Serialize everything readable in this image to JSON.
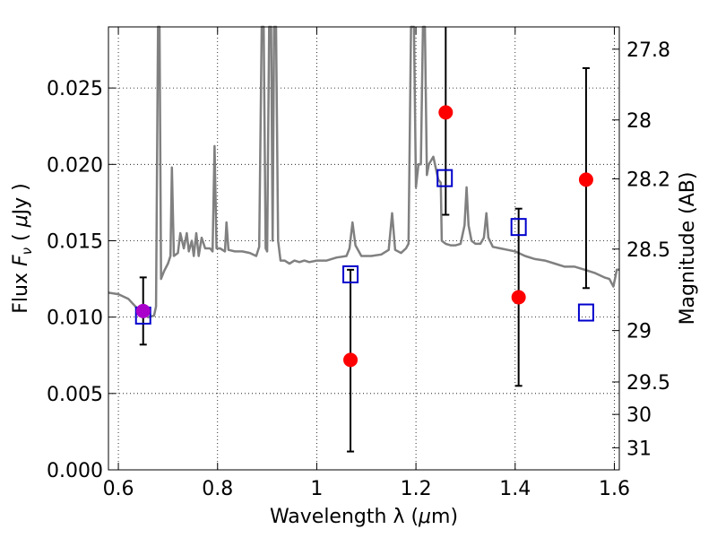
{
  "chart_data": {
    "type": "scatter",
    "title": "",
    "xlabel_text": "Wavelength  λ (",
    "xlabel_mu": "μ",
    "xlabel_unit": "m)",
    "ylabel_text": "Flux  ",
    "ylabel_symbol": "F",
    "ylabel_sub": "ν",
    "ylabel_rest": "  ( ",
    "ylabel_mu": "μ",
    "ylabel_unit": "Jy )",
    "y2label": "Magnitude (AB)",
    "xlim": [
      0.58,
      1.61
    ],
    "ylim": [
      0.0,
      0.029
    ],
    "grid": true,
    "grid_style": "dotted",
    "xticks": [
      {
        "value": 0.6,
        "label": "0.6"
      },
      {
        "value": 0.8,
        "label": "0.8"
      },
      {
        "value": 1.0,
        "label": "1"
      },
      {
        "value": 1.2,
        "label": "1.2"
      },
      {
        "value": 1.4,
        "label": "1.4"
      },
      {
        "value": 1.6,
        "label": "1.6"
      }
    ],
    "yticks": [
      {
        "value": 0.0,
        "label": "0.000"
      },
      {
        "value": 0.005,
        "label": "0.005"
      },
      {
        "value": 0.01,
        "label": "0.010"
      },
      {
        "value": 0.015,
        "label": "0.015"
      },
      {
        "value": 0.02,
        "label": "0.020"
      },
      {
        "value": 0.025,
        "label": "0.025"
      }
    ],
    "y2ticks": [
      {
        "mag": 27.8,
        "label": "27.8"
      },
      {
        "mag": 28.0,
        "label": "28"
      },
      {
        "mag": 28.2,
        "label": "28.2"
      },
      {
        "mag": 28.5,
        "label": "28.5"
      },
      {
        "mag": 29.0,
        "label": "29"
      },
      {
        "mag": 29.5,
        "label": "29.5"
      },
      {
        "mag": 30.0,
        "label": "30"
      },
      {
        "mag": 31.0,
        "label": "31"
      }
    ],
    "series": [
      {
        "kind": "spectrum",
        "color": "#808080",
        "points": [
          [
            0.58,
            0.0116
          ],
          [
            0.6,
            0.0115
          ],
          [
            0.62,
            0.0112
          ],
          [
            0.64,
            0.0105
          ],
          [
            0.66,
            0.01
          ],
          [
            0.672,
            0.0101
          ],
          [
            0.676,
            0.0107
          ],
          [
            0.68,
            0.029
          ],
          [
            0.683,
            0.029
          ],
          [
            0.686,
            0.0125
          ],
          [
            0.692,
            0.013
          ],
          [
            0.7,
            0.0135
          ],
          [
            0.705,
            0.014
          ],
          [
            0.708,
            0.0198
          ],
          [
            0.712,
            0.014
          ],
          [
            0.72,
            0.0142
          ],
          [
            0.725,
            0.0155
          ],
          [
            0.732,
            0.0145
          ],
          [
            0.738,
            0.0155
          ],
          [
            0.742,
            0.0143
          ],
          [
            0.748,
            0.015
          ],
          [
            0.752,
            0.014
          ],
          [
            0.757,
            0.0155
          ],
          [
            0.762,
            0.014
          ],
          [
            0.768,
            0.0152
          ],
          [
            0.775,
            0.0145
          ],
          [
            0.785,
            0.0145
          ],
          [
            0.79,
            0.0143
          ],
          [
            0.794,
            0.0212
          ],
          [
            0.798,
            0.0145
          ],
          [
            0.805,
            0.0145
          ],
          [
            0.815,
            0.0143
          ],
          [
            0.818,
            0.0162
          ],
          [
            0.822,
            0.0144
          ],
          [
            0.835,
            0.0143
          ],
          [
            0.85,
            0.0143
          ],
          [
            0.865,
            0.0142
          ],
          [
            0.878,
            0.014
          ],
          [
            0.884,
            0.0146
          ],
          [
            0.889,
            0.029
          ],
          [
            0.893,
            0.029
          ],
          [
            0.897,
            0.0145
          ],
          [
            0.9,
            0.0143
          ],
          [
            0.904,
            0.029
          ],
          [
            0.908,
            0.029
          ],
          [
            0.911,
            0.015
          ],
          [
            0.914,
            0.029
          ],
          [
            0.918,
            0.029
          ],
          [
            0.922,
            0.015
          ],
          [
            0.927,
            0.0137
          ],
          [
            0.935,
            0.0137
          ],
          [
            0.945,
            0.0135
          ],
          [
            0.955,
            0.0137
          ],
          [
            0.965,
            0.0136
          ],
          [
            0.975,
            0.0137
          ],
          [
            0.985,
            0.0136
          ],
          [
            1.0,
            0.0137
          ],
          [
            1.02,
            0.0137
          ],
          [
            1.04,
            0.0139
          ],
          [
            1.06,
            0.014
          ],
          [
            1.066,
            0.0145
          ],
          [
            1.072,
            0.0162
          ],
          [
            1.078,
            0.0147
          ],
          [
            1.09,
            0.014
          ],
          [
            1.11,
            0.014
          ],
          [
            1.13,
            0.0141
          ],
          [
            1.145,
            0.0144
          ],
          [
            1.152,
            0.0168
          ],
          [
            1.158,
            0.0144
          ],
          [
            1.17,
            0.0142
          ],
          [
            1.18,
            0.0145
          ],
          [
            1.185,
            0.0148
          ],
          [
            1.19,
            0.029
          ],
          [
            1.196,
            0.029
          ],
          [
            1.2,
            0.0185
          ],
          [
            1.205,
            0.02
          ],
          [
            1.21,
            0.02
          ],
          [
            1.214,
            0.029
          ],
          [
            1.218,
            0.029
          ],
          [
            1.222,
            0.0193
          ],
          [
            1.226,
            0.02
          ],
          [
            1.235,
            0.0205
          ],
          [
            1.245,
            0.019
          ],
          [
            1.25,
            0.0188
          ],
          [
            1.252,
            0.015
          ],
          [
            1.26,
            0.0148
          ],
          [
            1.27,
            0.0147
          ],
          [
            1.28,
            0.0147
          ],
          [
            1.29,
            0.0148
          ],
          [
            1.298,
            0.016
          ],
          [
            1.302,
            0.0185
          ],
          [
            1.306,
            0.016
          ],
          [
            1.312,
            0.015
          ],
          [
            1.32,
            0.0148
          ],
          [
            1.33,
            0.0148
          ],
          [
            1.337,
            0.0152
          ],
          [
            1.342,
            0.0168
          ],
          [
            1.346,
            0.0152
          ],
          [
            1.355,
            0.0146
          ],
          [
            1.37,
            0.0145
          ],
          [
            1.385,
            0.0144
          ],
          [
            1.4,
            0.0143
          ],
          [
            1.42,
            0.014
          ],
          [
            1.44,
            0.0138
          ],
          [
            1.46,
            0.0137
          ],
          [
            1.48,
            0.0135
          ],
          [
            1.5,
            0.0133
          ],
          [
            1.52,
            0.0133
          ],
          [
            1.54,
            0.0131
          ],
          [
            1.56,
            0.0129
          ],
          [
            1.58,
            0.0126
          ],
          [
            1.59,
            0.0125
          ],
          [
            1.598,
            0.012
          ],
          [
            1.605,
            0.0131
          ],
          [
            1.61,
            0.0131
          ]
        ]
      },
      {
        "kind": "squares",
        "color": "#0000cc",
        "points": [
          {
            "x": 0.65,
            "y": 0.0101
          },
          {
            "x": 1.068,
            "y": 0.0128
          },
          {
            "x": 1.258,
            "y": 0.0191
          },
          {
            "x": 1.407,
            "y": 0.0159
          },
          {
            "x": 1.543,
            "y": 0.0103
          }
        ]
      },
      {
        "kind": "circles",
        "color": "#ff0000",
        "points": [
          {
            "x": 1.068,
            "y": 0.0072,
            "yerr_low": 0.0012,
            "yerr_high": 0.0131
          },
          {
            "x": 1.26,
            "y": 0.0234,
            "yerr_low": 0.0167,
            "yerr_high": 0.029
          },
          {
            "x": 1.407,
            "y": 0.0113,
            "yerr_low": 0.0055,
            "yerr_high": 0.0171
          },
          {
            "x": 1.543,
            "y": 0.019,
            "yerr_low": 0.0119,
            "yerr_high": 0.0263
          }
        ]
      },
      {
        "kind": "circles",
        "color": "#aa00cc",
        "points": [
          {
            "x": 0.65,
            "y": 0.0104,
            "yerr_low": 0.0082,
            "yerr_high": 0.0126
          }
        ]
      }
    ]
  }
}
